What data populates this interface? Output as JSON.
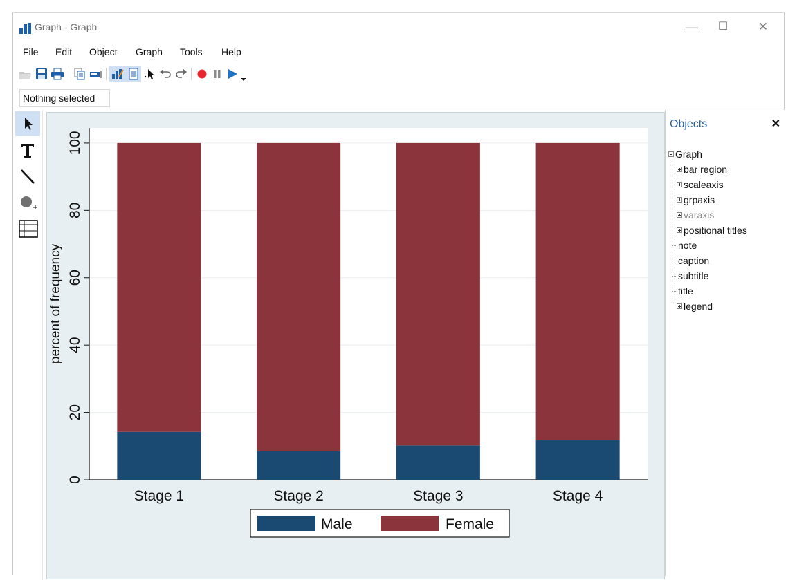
{
  "window": {
    "title": "Graph - Graph",
    "controls": {
      "minimize": "—",
      "maximize": "☐",
      "close": "✕"
    }
  },
  "menu": {
    "items": [
      "File",
      "Edit",
      "Object",
      "Graph",
      "Tools",
      "Help"
    ]
  },
  "toolbar": {
    "buttons": [
      "open-icon",
      "save-icon",
      "print-icon",
      "copy-icon",
      "rename-icon",
      "graph-editor-icon",
      "data-editor-icon",
      "pointer-icon",
      "undo-icon",
      "redo-icon",
      "record-icon",
      "pause-icon",
      "play-icon",
      "dropdown-icon"
    ]
  },
  "status": {
    "selection": "Nothing selected"
  },
  "tools": [
    "pointer-tool",
    "text-tool",
    "line-tool",
    "marker-tool",
    "grid-tool"
  ],
  "objects_panel": {
    "title": "Objects",
    "close": "✕",
    "tree": [
      {
        "label": "Graph",
        "level": 0,
        "expander": "minus",
        "muted": false
      },
      {
        "label": "bar region",
        "level": 1,
        "expander": "plus",
        "muted": false
      },
      {
        "label": "scaleaxis",
        "level": 1,
        "expander": "plus",
        "muted": false
      },
      {
        "label": "grpaxis",
        "level": 1,
        "expander": "plus",
        "muted": false
      },
      {
        "label": "varaxis",
        "level": 1,
        "expander": "plus",
        "muted": true
      },
      {
        "label": "positional titles",
        "level": 1,
        "expander": "plus",
        "muted": false
      },
      {
        "label": "note",
        "level": 1,
        "expander": "none",
        "muted": false
      },
      {
        "label": "caption",
        "level": 1,
        "expander": "none",
        "muted": false
      },
      {
        "label": "subtitle",
        "level": 1,
        "expander": "none",
        "muted": false
      },
      {
        "label": "title",
        "level": 1,
        "expander": "none",
        "muted": false
      },
      {
        "label": "legend",
        "level": 1,
        "expander": "plus",
        "muted": false
      }
    ]
  },
  "colors": {
    "male": "#1a4a72",
    "female": "#8c343c",
    "plot_bg": "#ffffff",
    "graph_bg": "#e8eff2"
  },
  "chart_data": {
    "type": "bar",
    "stacked": true,
    "categories": [
      "Stage 1",
      "Stage 2",
      "Stage 3",
      "Stage 4"
    ],
    "series": [
      {
        "name": "Male",
        "values": [
          14.2,
          8.5,
          10.2,
          11.7
        ]
      },
      {
        "name": "Female",
        "values": [
          85.8,
          91.5,
          89.8,
          88.3
        ]
      }
    ],
    "ylabel": "percent of frequency",
    "xlabel": "",
    "yticks": [
      0,
      20,
      40,
      60,
      80,
      100
    ],
    "ylim": [
      0,
      104.5
    ],
    "grid": true,
    "legend_position": "bottom"
  }
}
